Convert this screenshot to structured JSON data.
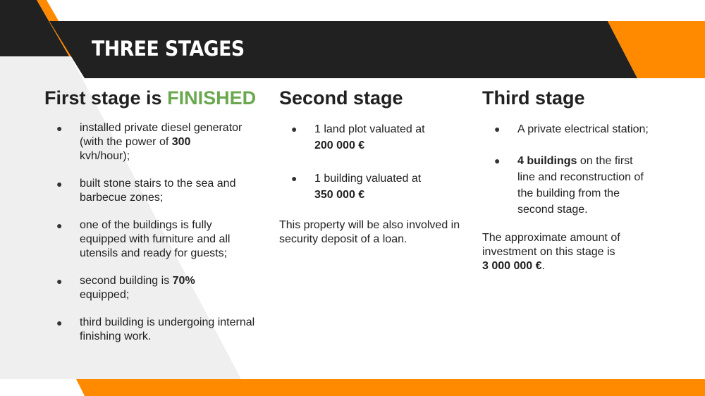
{
  "title": "THREE STAGES",
  "colors": {
    "banner": "#212121",
    "accent_orange": "#ff8a00",
    "finished_green": "#6aa84f",
    "panel_grey": "#efefef"
  },
  "stage1": {
    "heading": "First stage is",
    "heading_accent": "FINISHED",
    "bullet_glyph": "●",
    "items": [
      {
        "before": "installed private diesel generator (with the power of",
        "bold": "300",
        "after": "kvh/hour);"
      },
      {
        "text": "built stone stairs to the sea and barbecue zones;"
      },
      {
        "text": "one of the buildings is fully equipped with furniture and all utensils and ready for guests;"
      },
      {
        "before": "second building is",
        "bold": "70%",
        "after": "equipped;"
      },
      {
        "text": "third building is undergoing internal finishing work."
      }
    ]
  },
  "stage2": {
    "heading": "Second stage",
    "items": [
      {
        "text": "1 land plot valuated at",
        "bold": "200 000 €"
      },
      {
        "text": "1 building valuated at",
        "bold": "350 000 €"
      }
    ],
    "note": "This property will be also involved in security deposit of a loan."
  },
  "stage3": {
    "heading": "Third stage",
    "items": [
      {
        "text": "A private electrical station;"
      },
      {
        "bold": "4 buildings",
        "after": "on the first line and reconstruction of the building from the second stage."
      }
    ],
    "note_text": "The approximate amount of investment on this stage is",
    "note_bold": "3 000 000 €",
    "note_end": "."
  }
}
